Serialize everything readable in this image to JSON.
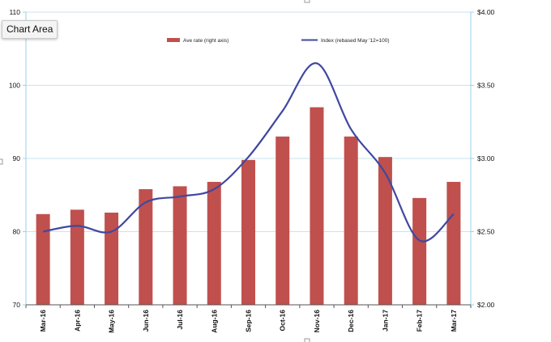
{
  "tooltip": {
    "text": "Chart Area"
  },
  "chart_data": {
    "type": "bar",
    "categories": [
      "Mar-16",
      "Apr-16",
      "May-16",
      "Jun-16",
      "Jul-16",
      "Aug-16",
      "Sep-16",
      "Oct-16",
      "Nov-16",
      "Dec-16",
      "Jan-17",
      "Feb-17",
      "Mar-17"
    ],
    "series": [
      {
        "name": "Ave rate (right axis)",
        "type": "bar",
        "axis": "right",
        "color": "#c0504d",
        "values": [
          2.62,
          2.65,
          2.63,
          2.79,
          2.81,
          2.84,
          2.99,
          3.15,
          3.35,
          3.15,
          3.01,
          2.73,
          2.84
        ]
      },
      {
        "name": "Index (rebased May '12=100)",
        "type": "line",
        "axis": "left",
        "color": "#3f48a0",
        "values": [
          80.0,
          80.8,
          80.0,
          84.0,
          84.8,
          85.8,
          90.2,
          96.5,
          103.0,
          94.0,
          88.0,
          78.8,
          82.4
        ]
      }
    ],
    "left_axis": {
      "ylim": [
        70,
        110
      ],
      "ticks": [
        70,
        80,
        90,
        100,
        110
      ],
      "tick_labels": [
        "70",
        "80",
        "90",
        "100",
        "110"
      ]
    },
    "right_axis": {
      "ylim": [
        2.0,
        4.0
      ],
      "ticks": [
        2.0,
        2.5,
        3.0,
        3.5,
        4.0
      ],
      "tick_labels": [
        "$2.00",
        "$2.50",
        "$3.00",
        "$3.50",
        "$4.00"
      ]
    },
    "grid": true,
    "legend_position": "top"
  }
}
